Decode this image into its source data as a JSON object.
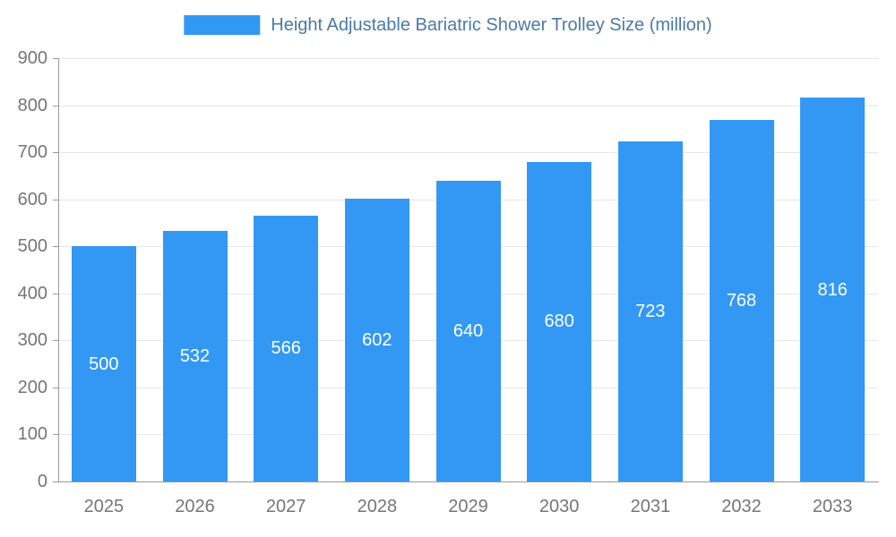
{
  "legend": {
    "title": "Height Adjustable Bariatric Shower Trolley Size (million)"
  },
  "colors": {
    "bar": "#3398f3",
    "title": "#4a7aa5",
    "tick": "#757575",
    "grid": "#e6e6e6",
    "axis": "#999999",
    "value_label": "#ffffff",
    "background": "#ffffff"
  },
  "chart_data": {
    "type": "bar",
    "title": "Height Adjustable Bariatric Shower Trolley Size (million)",
    "categories": [
      "2025",
      "2026",
      "2027",
      "2028",
      "2029",
      "2030",
      "2031",
      "2032",
      "2033"
    ],
    "values": [
      500,
      532,
      566,
      602,
      640,
      680,
      723,
      768,
      816
    ],
    "xlabel": "",
    "ylabel": "",
    "ylim": [
      0,
      900
    ],
    "ytick_step": 100,
    "grid": true,
    "legend_position": "top",
    "value_label_position": "inside-middle"
  }
}
